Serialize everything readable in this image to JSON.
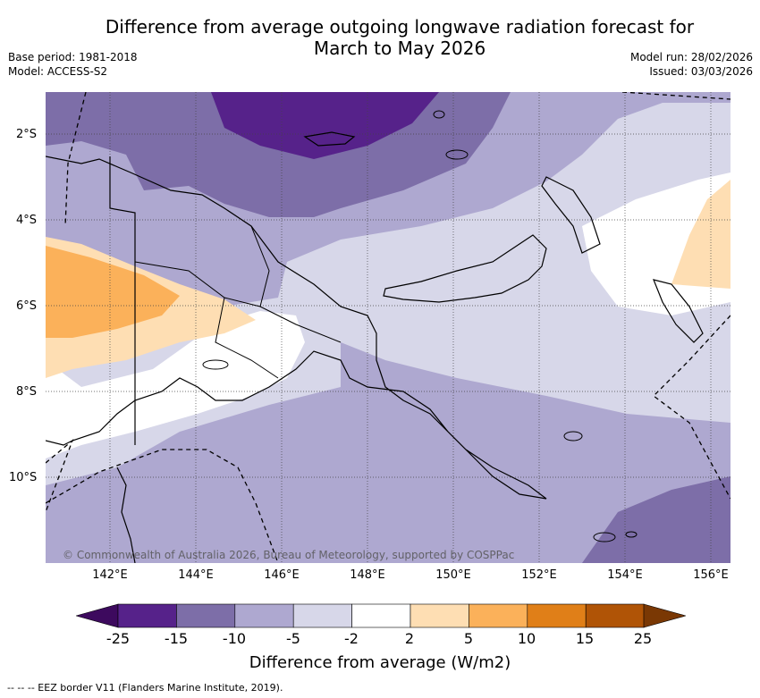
{
  "header": {
    "title_line1": "Difference from average outgoing longwave radiation forecast for",
    "title_line2": "March to May 2026",
    "base_period": "Base period: 1981-2018",
    "model": "Model: ACCESS-S2",
    "model_run": "Model run: 28/02/2026",
    "issued": "Issued: 03/03/2026"
  },
  "map": {
    "lat_labels": [
      "2°S",
      "4°S",
      "6°S",
      "8°S",
      "10°S"
    ],
    "lon_labels": [
      "142°E",
      "144°E",
      "146°E",
      "148°E",
      "150°E",
      "152°E",
      "154°E",
      "156°E"
    ],
    "copyright": "© Commonwealth of Australia 2026, Bureau of Meteorology, supported by COSPPac"
  },
  "legend": {
    "tick_labels": [
      "-25",
      "-15",
      "-10",
      "-5",
      "-2",
      "2",
      "5",
      "10",
      "15",
      "25"
    ],
    "colors": [
      "#3d0a5e",
      "#56228a",
      "#7d6ea8",
      "#aea8d0",
      "#d7d7e9",
      "#ffffff",
      "#fedeb3",
      "#fbb15a",
      "#e07f18",
      "#b05406",
      "#7a3804"
    ],
    "title": "Difference from average (W/m2)"
  },
  "footnote": "--  --  -- EEZ border V11 (Flanders Marine Institute, 2019)."
}
